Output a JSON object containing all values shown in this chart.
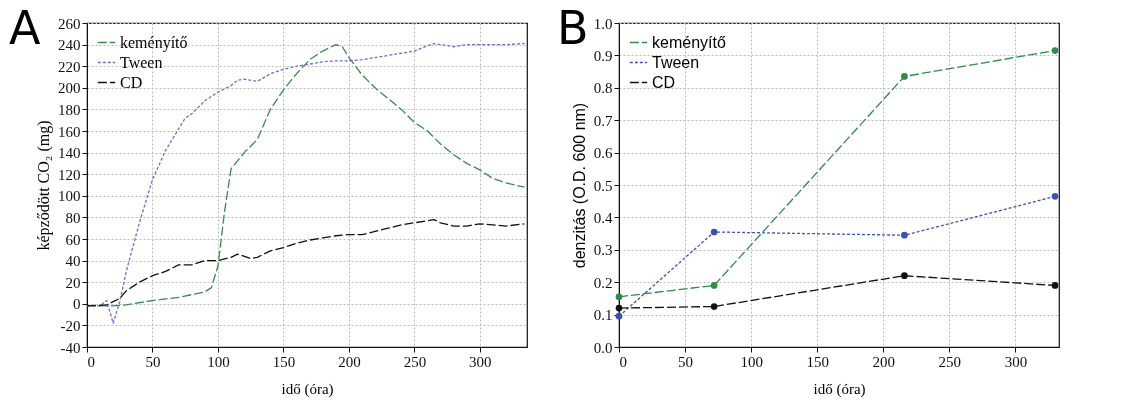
{
  "chart_data": [
    {
      "type": "line",
      "title": "A",
      "xlabel": "idő (óra)",
      "ylabel": "képződött CO₂ (mg)",
      "xlim": [
        0,
        336
      ],
      "ylim": [
        -40,
        260
      ],
      "xticks": [
        0,
        50,
        100,
        150,
        200,
        250,
        300
      ],
      "yticks": [
        -40,
        -20,
        0,
        20,
        40,
        60,
        80,
        100,
        120,
        140,
        160,
        180,
        200,
        220,
        240,
        260
      ],
      "grid": true,
      "legend": "top left",
      "marker": "none",
      "series": [
        {
          "name": "keményítő",
          "color": "#3a8a4a",
          "line_style": "dashed",
          "x": [
            0,
            20,
            30,
            50,
            70,
            90,
            95,
            100,
            105,
            110,
            120,
            130,
            140,
            150,
            160,
            170,
            180,
            190,
            195,
            200,
            210,
            220,
            230,
            240,
            250,
            260,
            270,
            280,
            290,
            300,
            310,
            320,
            334
          ],
          "values": [
            -2,
            -2,
            -1,
            3,
            6,
            11,
            15,
            35,
            85,
            125,
            140,
            152,
            180,
            198,
            213,
            226,
            234,
            240,
            238,
            228,
            212,
            200,
            190,
            180,
            168,
            160,
            148,
            138,
            130,
            124,
            116,
            112,
            108
          ]
        },
        {
          "name": "Tween",
          "color": "#6b6bd6",
          "line_style": "dotted",
          "x": [
            0,
            10,
            15,
            20,
            25,
            30,
            40,
            50,
            60,
            70,
            75,
            80,
            90,
            100,
            110,
            115,
            120,
            130,
            140,
            150,
            160,
            170,
            180,
            190,
            200,
            210,
            220,
            230,
            240,
            250,
            260,
            265,
            280,
            290,
            300,
            320,
            334
          ],
          "values": [
            -2,
            -2,
            3,
            -18,
            2,
            30,
            75,
            115,
            142,
            162,
            172,
            176,
            188,
            196,
            202,
            207,
            208,
            206,
            213,
            217,
            220,
            222,
            224,
            225,
            225,
            226,
            228,
            230,
            232,
            234,
            239,
            241,
            238,
            240,
            240,
            240,
            241
          ]
        },
        {
          "name": "CD",
          "color": "#111111",
          "line_style": "dashed",
          "x": [
            0,
            15,
            20,
            25,
            30,
            40,
            50,
            60,
            70,
            80,
            90,
            100,
            110,
            115,
            125,
            130,
            140,
            150,
            160,
            170,
            180,
            190,
            200,
            210,
            220,
            230,
            240,
            250,
            260,
            265,
            270,
            280,
            290,
            300,
            320,
            334
          ],
          "values": [
            -2,
            -1,
            2,
            5,
            12,
            20,
            26,
            30,
            36,
            36,
            40,
            40,
            43,
            46,
            42,
            43,
            49,
            52,
            56,
            59,
            61,
            63,
            64,
            64,
            67,
            70,
            73,
            75,
            77,
            78,
            75,
            72,
            72,
            74,
            72,
            74
          ]
        }
      ]
    },
    {
      "type": "line",
      "title": "B",
      "xlabel": "idő (óra)",
      "ylabel": "denzitás (O.D. 600 nm)",
      "xlim": [
        0,
        333
      ],
      "ylim": [
        0,
        1
      ],
      "xticks": [
        0,
        50,
        100,
        150,
        200,
        250,
        300
      ],
      "yticks": [
        {
          "value": 0,
          "label": "0.0"
        },
        0.1,
        0.2,
        0.3,
        0.4,
        0.5,
        0.6,
        0.7,
        0.8,
        0.9,
        {
          "value": 1,
          "label": "1.0"
        }
      ],
      "grid": true,
      "legend": "top left",
      "marker": "circle",
      "series": [
        {
          "name": "keményítő",
          "color": "#2e8b4a",
          "line_style": "dashed",
          "x": [
            0,
            72,
            216,
            330
          ],
          "values": [
            0.155,
            0.19,
            0.835,
            0.915
          ]
        },
        {
          "name": "Tween",
          "color": "#3d52b0",
          "line_style": "dotted",
          "x": [
            0,
            72,
            216,
            330
          ],
          "values": [
            0.095,
            0.355,
            0.345,
            0.465
          ]
        },
        {
          "name": "CD",
          "color": "#111111",
          "line_style": "dashed",
          "x": [
            0,
            72,
            216,
            330
          ],
          "values": [
            0.12,
            0.125,
            0.22,
            0.19
          ]
        }
      ]
    }
  ]
}
